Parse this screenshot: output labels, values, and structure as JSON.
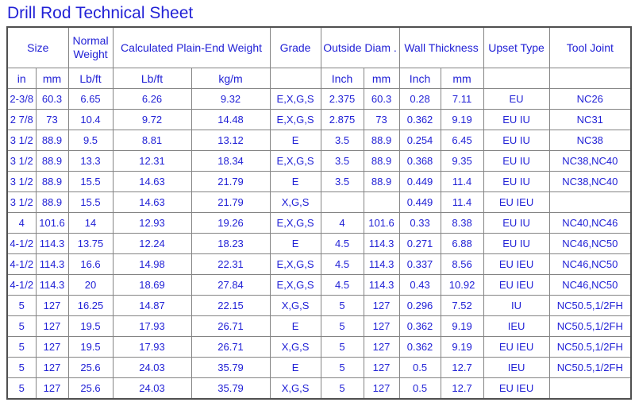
{
  "page": {
    "title": "Drill Rod Technical Sheet"
  },
  "colors": {
    "text_blue": "#2222d6",
    "grid_border": "#848484",
    "outer_border": "#4f4f4f",
    "background": "#ffffff"
  },
  "table": {
    "column_groups": [
      {
        "label": "Size",
        "colspan": 2
      },
      {
        "label": "Normal Weight",
        "colspan": 1
      },
      {
        "label": "Calculated Plain-End Weight",
        "colspan": 2
      },
      {
        "label": "Grade",
        "colspan": 1
      },
      {
        "label": "Outside Diam .",
        "colspan": 2
      },
      {
        "label": "Wall Thickness",
        "colspan": 2
      },
      {
        "label": "Upset Type",
        "colspan": 1
      },
      {
        "label": "Tool Joint",
        "colspan": 1
      }
    ],
    "unit_row": [
      "in",
      "mm",
      "Lb/ft",
      "Lb/ft",
      "kg/m",
      "",
      "Inch",
      "mm",
      "Inch",
      "mm",
      "",
      ""
    ],
    "rows": [
      [
        "2-3/8",
        "60.3",
        "6.65",
        "6.26",
        "9.32",
        "E,X,G,S",
        "2.375",
        "60.3",
        "0.28",
        "7.11",
        "EU",
        "NC26"
      ],
      [
        "2 7/8",
        "73",
        "10.4",
        "9.72",
        "14.48",
        "E,X,G,S",
        "2.875",
        "73",
        "0.362",
        "9.19",
        "EU IU",
        "NC31"
      ],
      [
        "3 1/2",
        "88.9",
        "9.5",
        "8.81",
        "13.12",
        "E",
        "3.5",
        "88.9",
        "0.254",
        "6.45",
        "EU IU",
        "NC38"
      ],
      [
        "3 1/2",
        "88.9",
        "13.3",
        "12.31",
        "18.34",
        "E,X,G,S",
        "3.5",
        "88.9",
        "0.368",
        "9.35",
        "EU IU",
        "NC38,NC40"
      ],
      [
        "3 1/2",
        "88.9",
        "15.5",
        "14.63",
        "21.79",
        "E",
        "3.5",
        "88.9",
        "0.449",
        "11.4",
        "EU IU",
        "NC38,NC40"
      ],
      [
        "3 1/2",
        "88.9",
        "15.5",
        "14.63",
        "21.79",
        "X,G,S",
        "",
        "",
        "0.449",
        "11.4",
        "EU IEU",
        ""
      ],
      [
        "4",
        "101.6",
        "14",
        "12.93",
        "19.26",
        "E,X,G,S",
        "4",
        "101.6",
        "0.33",
        "8.38",
        "EU IU",
        "NC40,NC46"
      ],
      [
        "4-1/2",
        "114.3",
        "13.75",
        "12.24",
        "18.23",
        "E",
        "4.5",
        "114.3",
        "0.271",
        "6.88",
        "EU IU",
        "NC46,NC50"
      ],
      [
        "4-1/2",
        "114.3",
        "16.6",
        "14.98",
        "22.31",
        "E,X,G,S",
        "4.5",
        "114.3",
        "0.337",
        "8.56",
        "EU IEU",
        "NC46,NC50"
      ],
      [
        "4-1/2",
        "114.3",
        "20",
        "18.69",
        "27.84",
        "E,X,G,S",
        "4.5",
        "114.3",
        "0.43",
        "10.92",
        "EU IEU",
        "NC46,NC50"
      ],
      [
        "5",
        "127",
        "16.25",
        "14.87",
        "22.15",
        "X,G,S",
        "5",
        "127",
        "0.296",
        "7.52",
        "IU",
        "NC50.5,1/2FH"
      ],
      [
        "5",
        "127",
        "19.5",
        "17.93",
        "26.71",
        "E",
        "5",
        "127",
        "0.362",
        "9.19",
        "IEU",
        "NC50.5,1/2FH"
      ],
      [
        "5",
        "127",
        "19.5",
        "17.93",
        "26.71",
        "X,G,S",
        "5",
        "127",
        "0.362",
        "9.19",
        "EU IEU",
        "NC50.5,1/2FH"
      ],
      [
        "5",
        "127",
        "25.6",
        "24.03",
        "35.79",
        "E",
        "5",
        "127",
        "0.5",
        "12.7",
        "IEU",
        "NC50.5,1/2FH"
      ],
      [
        "5",
        "127",
        "25.6",
        "24.03",
        "35.79",
        "X,G,S",
        "5",
        "127",
        "0.5",
        "12.7",
        "EU IEU",
        ""
      ]
    ]
  }
}
